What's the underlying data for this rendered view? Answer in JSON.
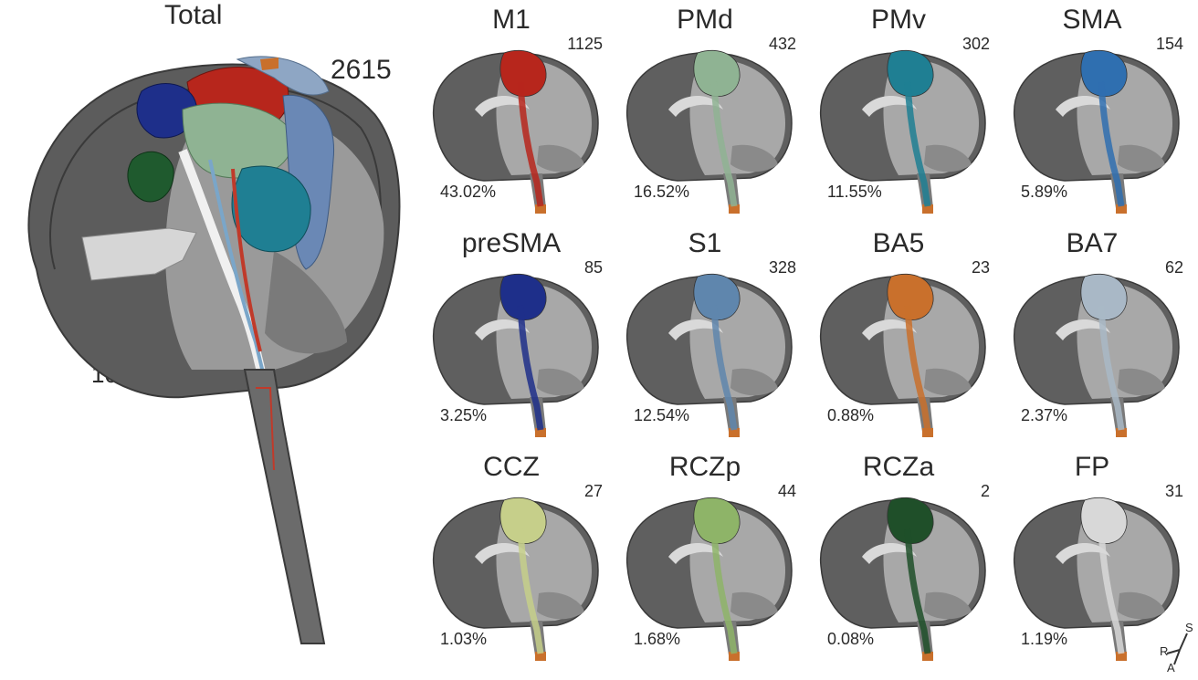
{
  "total": {
    "title": "Total",
    "count": "2615",
    "percent": "100%"
  },
  "panels": [
    {
      "title": "M1",
      "count": "1125",
      "percent": "43.02%",
      "color": "#b7261c"
    },
    {
      "title": "PMd",
      "count": "432",
      "percent": "16.52%",
      "color": "#8fb393"
    },
    {
      "title": "PMv",
      "count": "302",
      "percent": "11.55%",
      "color": "#1f7f93"
    },
    {
      "title": "SMA",
      "count": "154",
      "percent": "5.89%",
      "color": "#2f6fb0"
    },
    {
      "title": "preSMA",
      "count": "85",
      "percent": "3.25%",
      "color": "#1e2f8a"
    },
    {
      "title": "S1",
      "count": "328",
      "percent": "12.54%",
      "color": "#5f86ad"
    },
    {
      "title": "BA5",
      "count": "23",
      "percent": "0.88%",
      "color": "#c9702c"
    },
    {
      "title": "BA7",
      "count": "62",
      "percent": "2.37%",
      "color": "#a9b8c6"
    },
    {
      "title": "CCZ",
      "count": "27",
      "percent": "1.03%",
      "color": "#c6cf8a"
    },
    {
      "title": "RCZp",
      "count": "44",
      "percent": "1.68%",
      "color": "#8eb468"
    },
    {
      "title": "RCZa",
      "count": "2",
      "percent": "0.08%",
      "color": "#1f4f29"
    },
    {
      "title": "FP",
      "count": "31",
      "percent": "1.19%",
      "color": "#d8d8d8"
    }
  ],
  "orientation": {
    "superior": "S",
    "right": "R",
    "anterior": "A"
  }
}
